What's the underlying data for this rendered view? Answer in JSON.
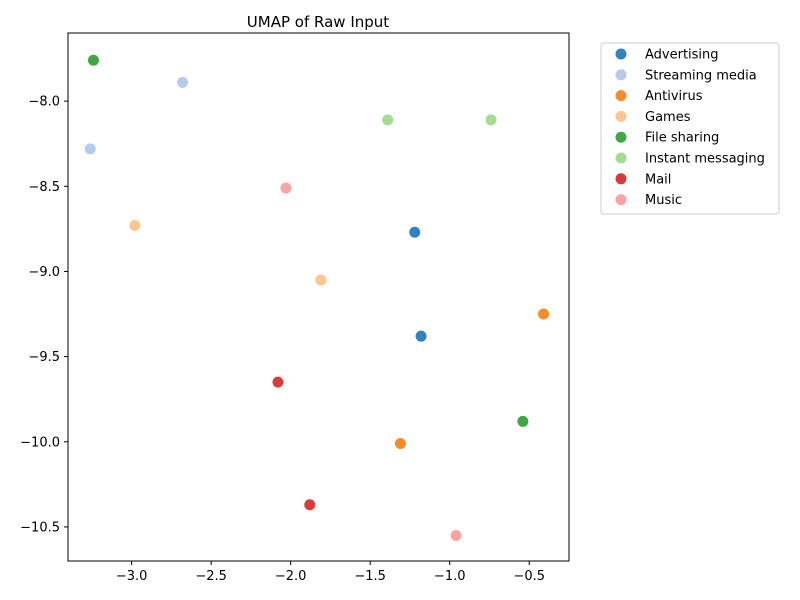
{
  "chart_data": {
    "type": "scatter",
    "title": "UMAP of Raw Input",
    "xlabel": "",
    "ylabel": "",
    "xlim": [
      -3.4,
      -0.25
    ],
    "ylim": [
      -10.7,
      -7.6
    ],
    "xticks": [
      -3.0,
      -2.5,
      -2.0,
      -1.5,
      -1.0,
      -0.5
    ],
    "xtick_labels": [
      "−3.0",
      "−2.5",
      "−2.0",
      "−1.5",
      "−1.0",
      "−0.5"
    ],
    "yticks": [
      -8.0,
      -8.5,
      -9.0,
      -9.5,
      -10.0,
      -10.5
    ],
    "ytick_labels": [
      "−8.0",
      "−8.5",
      "−9.0",
      "−9.5",
      "−10.0",
      "−10.5"
    ],
    "grid": false,
    "legend_position": "outside-right-top",
    "series": [
      {
        "name": "Advertising",
        "color": "#3182bd",
        "points": [
          [
            -1.22,
            -8.77
          ],
          [
            -1.18,
            -9.38
          ]
        ]
      },
      {
        "name": "Streaming media",
        "color": "#b6cbec",
        "points": [
          [
            -2.68,
            -7.89
          ],
          [
            -3.26,
            -8.28
          ]
        ]
      },
      {
        "name": "Antivirus",
        "color": "#f58c2a",
        "points": [
          [
            -0.41,
            -9.25
          ],
          [
            -1.31,
            -10.01
          ]
        ]
      },
      {
        "name": "Games",
        "color": "#fdc58f",
        "points": [
          [
            -2.98,
            -8.73
          ],
          [
            -1.81,
            -9.05
          ]
        ]
      },
      {
        "name": "File sharing",
        "color": "#40a843",
        "points": [
          [
            -3.24,
            -7.76
          ],
          [
            -0.54,
            -9.88
          ]
        ]
      },
      {
        "name": "Instant messaging",
        "color": "#a4dc91",
        "points": [
          [
            -1.39,
            -8.11
          ],
          [
            -0.74,
            -8.11
          ]
        ]
      },
      {
        "name": "Mail",
        "color": "#d83b3c",
        "points": [
          [
            -2.08,
            -9.65
          ],
          [
            -1.88,
            -10.37
          ]
        ]
      },
      {
        "name": "Music",
        "color": "#fea3a4",
        "points": [
          [
            -2.03,
            -8.51
          ],
          [
            -0.96,
            -10.55
          ]
        ]
      }
    ]
  }
}
